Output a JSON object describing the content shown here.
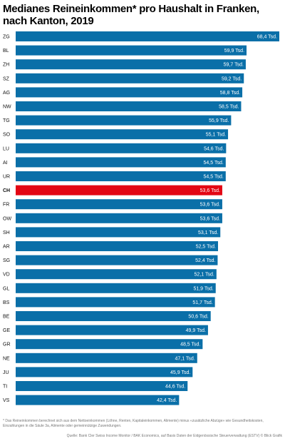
{
  "colors": {
    "bar": "#0a6fa8",
    "highlight": "#e30613",
    "value_text": "#ffffff"
  },
  "chart_data": {
    "type": "bar",
    "orientation": "horizontal",
    "title": "Medianes Reineinkommen* pro Haushalt in Franken, nach Kanton, 2019",
    "value_suffix": " Tsd.",
    "decimal_separator": ",",
    "categories": [
      "ZG",
      "BL",
      "ZH",
      "SZ",
      "AG",
      "NW",
      "TG",
      "SO",
      "LU",
      "AI",
      "UR",
      "CH",
      "FR",
      "OW",
      "SH",
      "AR",
      "SG",
      "VD",
      "GL",
      "BS",
      "BE",
      "GE",
      "GR",
      "NE",
      "JU",
      "TI",
      "VS"
    ],
    "values": [
      68.4,
      59.9,
      59.7,
      59.2,
      58.8,
      58.5,
      55.9,
      55.1,
      54.6,
      54.5,
      54.5,
      53.6,
      53.6,
      53.6,
      53.1,
      52.5,
      52.4,
      52.1,
      51.9,
      51.7,
      50.6,
      49.9,
      48.5,
      47.1,
      45.9,
      44.6,
      42.4
    ],
    "highlight_category": "CH",
    "xlim": [
      0,
      68.4
    ],
    "grid": false,
    "legend": "none"
  },
  "footnote": "* Das Reineinkommen berechnet sich aus dem Nettoeinkommen (Löhne, Renten, Kapitaleinkommen, Alimente) minus «zusätzliche Abzüge» wie Gesundheitskosten, Einzahlungen in die Säule 3a, Alimente oder gemeinnützige Zuwendungen.",
  "source": "Quelle: Bank Cler Swiss Income Monitor / BAK Economics, auf Basis Daten der Eidgenössische Steuerverwaltung (ESTV) © Blick Grafik"
}
